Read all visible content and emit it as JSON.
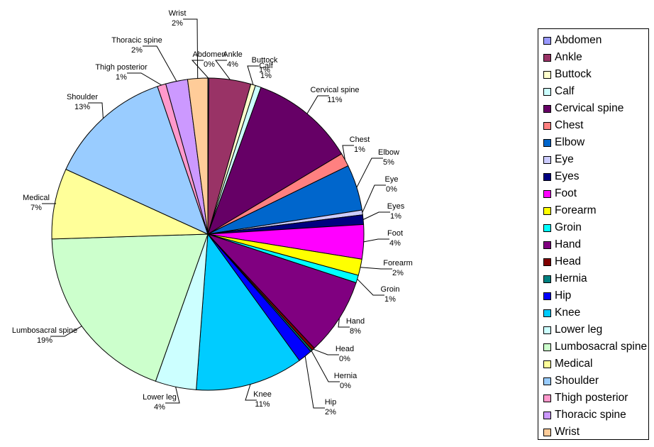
{
  "chart_data": {
    "type": "pie",
    "start_angle_deg": 0,
    "direction": "clockwise",
    "legend": "right",
    "slices": [
      {
        "name": "Abdomen",
        "label": "0%",
        "value": 0.1,
        "color": "#9999FF"
      },
      {
        "name": "Ankle",
        "label": "4%",
        "value": 4.4,
        "color": "#993366"
      },
      {
        "name": "Buttock",
        "label": "1%",
        "value": 0.5,
        "color": "#FFFFCC"
      },
      {
        "name": "Calf",
        "label": "1%",
        "value": 0.6,
        "color": "#CCFFFF"
      },
      {
        "name": "Cervical spine",
        "label": "11%",
        "value": 11.0,
        "color": "#660066"
      },
      {
        "name": "Chest",
        "label": "1%",
        "value": 1.4,
        "color": "#FF8080"
      },
      {
        "name": "Elbow",
        "label": "5%",
        "value": 4.8,
        "color": "#0066CC"
      },
      {
        "name": "Eye",
        "label": "0%",
        "value": 0.5,
        "color": "#CCCCFF"
      },
      {
        "name": "Eyes",
        "label": "1%",
        "value": 1.0,
        "color": "#000080"
      },
      {
        "name": "Foot",
        "label": "4%",
        "value": 3.6,
        "color": "#FF00FF"
      },
      {
        "name": "Forearm",
        "label": "2%",
        "value": 1.7,
        "color": "#FFFF00"
      },
      {
        "name": "Groin",
        "label": "1%",
        "value": 0.8,
        "color": "#00FFFF"
      },
      {
        "name": "Hand",
        "label": "8%",
        "value": 8.1,
        "color": "#800080"
      },
      {
        "name": "Head",
        "label": "0%",
        "value": 0.3,
        "color": "#800000"
      },
      {
        "name": "Hernia",
        "label": "0%",
        "value": 0.2,
        "color": "#008080"
      },
      {
        "name": "Hip",
        "label": "2%",
        "value": 1.5,
        "color": "#0000FF"
      },
      {
        "name": "Knee",
        "label": "11%",
        "value": 11.3,
        "color": "#00CCFF"
      },
      {
        "name": "Lower leg",
        "label": "4%",
        "value": 4.3,
        "color": "#CCFFFF"
      },
      {
        "name": "Lumbosacral spine",
        "label": "19%",
        "value": 19.3,
        "color": "#CCFFCC"
      },
      {
        "name": "Medical",
        "label": "7%",
        "value": 7.4,
        "color": "#FFFF99"
      },
      {
        "name": "Shoulder",
        "label": "13%",
        "value": 13.1,
        "color": "#99CCFF"
      },
      {
        "name": "Thigh posterior",
        "label": "1%",
        "value": 0.9,
        "color": "#FF99CC"
      },
      {
        "name": "Thoracic spine",
        "label": "2%",
        "value": 2.3,
        "color": "#CC99FF"
      },
      {
        "name": "Wrist",
        "label": "2%",
        "value": 2.1,
        "color": "#FFCC99"
      }
    ]
  }
}
